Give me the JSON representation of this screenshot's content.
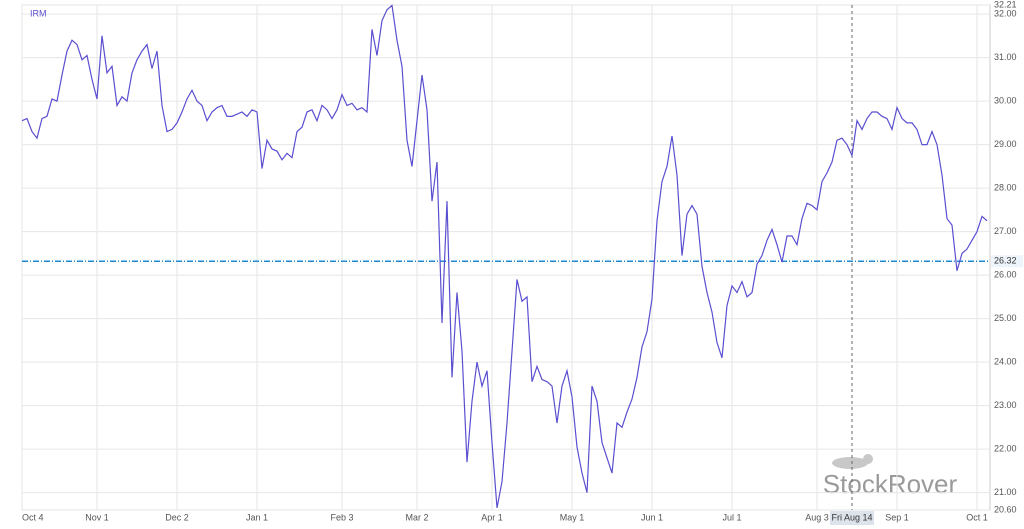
{
  "chart_data": {
    "type": "line",
    "series": [
      {
        "name": "IRM",
        "color": "#5a4fd0",
        "values": [
          29.55,
          29.6,
          29.3,
          29.15,
          29.6,
          29.65,
          30.05,
          30.0,
          30.6,
          31.15,
          31.4,
          31.3,
          30.95,
          31.05,
          30.5,
          30.05,
          31.5,
          30.65,
          30.8,
          29.9,
          30.1,
          30.0,
          30.65,
          30.95,
          31.15,
          31.3,
          30.75,
          31.15,
          29.9,
          29.3,
          29.35,
          29.5,
          29.75,
          30.05,
          30.25,
          30.0,
          29.9,
          29.55,
          29.75,
          29.85,
          29.9,
          29.65,
          29.65,
          29.7,
          29.75,
          29.65,
          29.8,
          29.75,
          28.45,
          29.1,
          28.9,
          28.85,
          28.65,
          28.8,
          28.7,
          29.3,
          29.4,
          29.75,
          29.8,
          29.55,
          29.9,
          29.8,
          29.6,
          29.8,
          30.15,
          29.9,
          29.95,
          29.8,
          29.85,
          29.75,
          31.65,
          31.05,
          31.85,
          32.1,
          32.2,
          31.4,
          30.8,
          29.1,
          28.5,
          29.55,
          30.6,
          29.8,
          27.7,
          28.6,
          24.9,
          27.7,
          23.65,
          25.6,
          24.25,
          21.7,
          23.1,
          24.0,
          23.45,
          23.8,
          22.15,
          20.65,
          21.25,
          22.6,
          24.25,
          25.9,
          25.4,
          25.5,
          23.55,
          23.9,
          23.6,
          23.55,
          23.45,
          22.6,
          23.45,
          23.8,
          23.2,
          22.05,
          21.45,
          21.0,
          23.45,
          23.1,
          22.15,
          21.8,
          21.45,
          22.6,
          22.5,
          22.85,
          23.15,
          23.65,
          24.35,
          24.7,
          25.45,
          27.25,
          28.15,
          28.5,
          29.2,
          28.3,
          26.45,
          27.4,
          27.6,
          27.4,
          26.2,
          25.6,
          25.15,
          24.45,
          24.1,
          25.3,
          25.75,
          25.6,
          25.85,
          25.5,
          25.6,
          26.25,
          26.45,
          26.8,
          27.05,
          26.7,
          26.3,
          26.9,
          26.9,
          26.7,
          27.3,
          27.65,
          27.6,
          27.5,
          28.15,
          28.35,
          28.6,
          29.1,
          29.15,
          29.0,
          28.75,
          29.55,
          29.35,
          29.6,
          29.75,
          29.75,
          29.65,
          29.6,
          29.35,
          29.85,
          29.6,
          29.5,
          29.5,
          29.35,
          29.0,
          29.0,
          29.3,
          29.0,
          28.3,
          27.3,
          27.15,
          26.1,
          26.5,
          26.6,
          26.8,
          27.0,
          27.35,
          27.25
        ]
      }
    ],
    "categories": [
      "Oct 4",
      null,
      null,
      null,
      null,
      null,
      null,
      null,
      null,
      null,
      null,
      null,
      null,
      null,
      null,
      "Nov 1",
      null,
      null,
      null,
      null,
      null,
      null,
      null,
      null,
      null,
      null,
      null,
      null,
      null,
      null,
      null,
      "Dec 2",
      null,
      null,
      null,
      null,
      null,
      null,
      null,
      null,
      null,
      null,
      null,
      null,
      null,
      null,
      null,
      "Jan 1",
      null,
      null,
      null,
      null,
      null,
      null,
      null,
      null,
      null,
      null,
      null,
      null,
      null,
      null,
      null,
      null,
      "Feb 3",
      null,
      null,
      null,
      null,
      null,
      null,
      null,
      null,
      null,
      null,
      null,
      null,
      null,
      null,
      "Mar 2",
      null,
      null,
      null,
      null,
      null,
      null,
      null,
      null,
      null,
      null,
      null,
      null,
      null,
      null,
      "Apr 1",
      null,
      null,
      null,
      null,
      null,
      null,
      null,
      null,
      null,
      null,
      null,
      null,
      null,
      null,
      null,
      "May 1",
      null,
      null,
      null,
      null,
      null,
      null,
      null,
      null,
      null,
      null,
      null,
      null,
      null,
      null,
      null,
      "Jun 1",
      null,
      null,
      null,
      null,
      null,
      null,
      null,
      null,
      null,
      null,
      null,
      null,
      null,
      null,
      null,
      "Jul 1",
      null,
      null,
      null,
      null,
      null,
      null,
      null,
      null,
      null,
      null,
      null,
      null,
      null,
      null,
      null,
      null,
      "Aug 3",
      null,
      null,
      null,
      null,
      null,
      null,
      "Fri Aug 14",
      null,
      null,
      null,
      null,
      null,
      null,
      null,
      null,
      "Sep 1",
      null,
      null,
      null,
      null,
      null,
      null,
      null,
      null,
      null,
      null,
      null,
      null,
      null,
      null,
      null,
      "Oct 1",
      null,
      null
    ],
    "crosshair_category": 166,
    "ylim": [
      20.6,
      32.21
    ],
    "yticks": [
      32.21,
      {
        "value": 32,
        "label": "32.00"
      },
      {
        "value": 31,
        "label": "31.00"
      },
      {
        "value": 30,
        "label": "30.00"
      },
      {
        "value": 29,
        "label": "29.00"
      },
      {
        "value": 28,
        "label": "28.00"
      },
      {
        "value": 27,
        "label": "27.00"
      },
      {
        "value": 26,
        "label": "26.00"
      },
      {
        "value": 25,
        "label": "25.00"
      },
      {
        "value": 24,
        "label": "24.00"
      },
      {
        "value": 23,
        "label": "23.00"
      },
      {
        "value": 22,
        "label": "22.00"
      },
      {
        "value": 21,
        "label": "21.00"
      },
      {
        "value": 20.6,
        "label": "20.60"
      }
    ],
    "reference_line": {
      "value": 26.32,
      "color": "#1e88d0"
    },
    "grid": true,
    "watermark": "StockRover"
  }
}
